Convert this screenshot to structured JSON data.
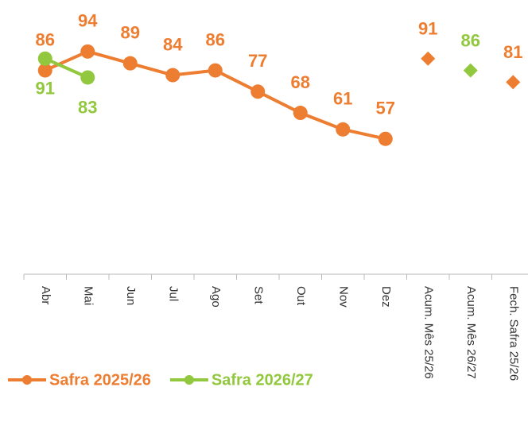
{
  "chart_data": {
    "type": "line",
    "categories": [
      "Abr",
      "Mai",
      "Jun",
      "Jul",
      "Ago",
      "Set",
      "Out",
      "Nov",
      "Dez"
    ],
    "summary_categories": [
      "Acum. Mês 25/26",
      "Acum. Mês 26/27",
      "Fech. Safra 25/26"
    ],
    "series": [
      {
        "name": "Safra 2025/26",
        "color": "#ED7D31",
        "values": [
          86,
          94,
          89,
          84,
          86,
          77,
          68,
          61,
          57
        ],
        "summary_values": [
          91,
          null,
          81
        ]
      },
      {
        "name": "Safra 2026/27",
        "color": "#92C83E",
        "values": [
          91,
          83,
          null,
          null,
          null,
          null,
          null,
          null,
          null
        ],
        "summary_values": [
          null,
          86,
          null
        ]
      }
    ],
    "ylim": [
      0,
      100
    ]
  }
}
